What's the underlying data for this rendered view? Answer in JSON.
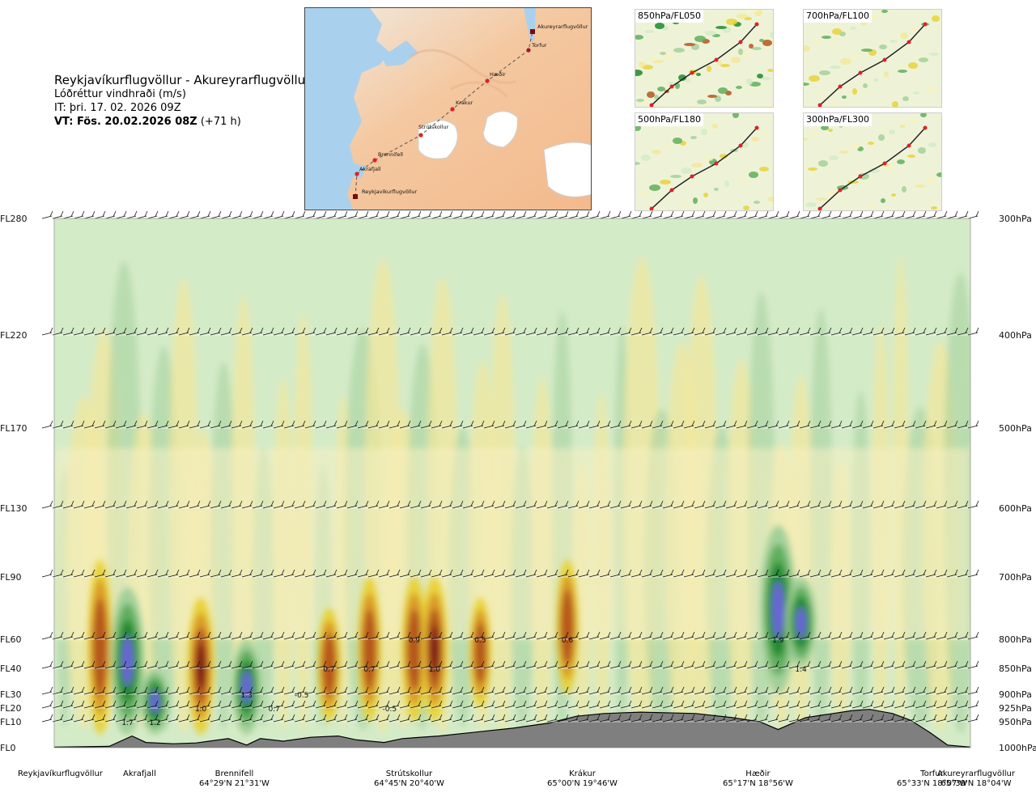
{
  "header": {
    "route": "Reykjavíkurflugvöllur - Akureyrarflugvöllur",
    "quantity": "Lóðréttur vindhraði (m/s)",
    "issue_time": "IT: þri. 17. 02. 2026 09Z",
    "valid_time_label": "VT: Fös. 20.02.2026 08Z",
    "lead_time": "(+71 h)"
  },
  "map": {
    "points": [
      {
        "name": "Akureyrarflugvöllur"
      },
      {
        "name": "Torfur"
      },
      {
        "name": "Hæðir"
      },
      {
        "name": "Krákur"
      },
      {
        "name": "Strútskollur"
      },
      {
        "name": "Brennifell"
      },
      {
        "name": "Akrafjall"
      },
      {
        "name": "Reykjavíkurflugvöllur"
      }
    ]
  },
  "panels": [
    {
      "label": "850hPa/FL050"
    },
    {
      "label": "700hPa/FL100"
    },
    {
      "label": "500hPa/FL180"
    },
    {
      "label": "300hPa/FL300"
    }
  ],
  "colors": {
    "strong_down": "#7b1e12",
    "down2": "#b5561a",
    "down3": "#d99a2a",
    "down4": "#e8d23a",
    "down5": "#f3e79a",
    "weak": "#f7f1c4",
    "up1": "#d4ebc8",
    "up2": "#a3d09a",
    "up3": "#5fae5d",
    "up4": "#1e8a2e",
    "strong_up": "#6a63d8",
    "terrain": "#7f7f7f"
  },
  "chart_data": {
    "type": "heatmap",
    "title": "Lóðréttur vindhraði (m/s)",
    "xlabel": "",
    "ylabel": "",
    "x_points": [
      {
        "name": "Reykjavíkurflugvöllur",
        "coord": ""
      },
      {
        "name": "Akrafjall",
        "coord": ""
      },
      {
        "name": "Brennifell",
        "coord": "64°29'N 21°31'W"
      },
      {
        "name": "Strútskollur",
        "coord": "64°45'N 20°40'W"
      },
      {
        "name": "Krákur",
        "coord": "65°00'N 19°46'W"
      },
      {
        "name": "Hæðir",
        "coord": "65°17'N 18°56'W"
      },
      {
        "name": "Torfur",
        "coord": "65°33'N 18°07'W"
      },
      {
        "name": "Akureyrarflugvöllur",
        "coord": "65°39'N 18°04'W"
      }
    ],
    "left_axis": [
      "FL280",
      "FL220",
      "FL170",
      "FL130",
      "FL90",
      "FL60",
      "FL40",
      "FL30",
      "FL20",
      "FL10",
      "FL0"
    ],
    "right_axis": [
      "300hPa",
      "400hPa",
      "500hPa",
      "600hPa",
      "700hPa",
      "800hPa",
      "850hPa",
      "900hPa",
      "925hPa",
      "950hPa",
      "1000hPa"
    ],
    "pressure_levels_hpa": [
      300,
      400,
      500,
      600,
      700,
      800,
      850,
      900,
      925,
      950,
      1000
    ],
    "annotations": [
      {
        "text": "1.7",
        "dist": 0.08,
        "fl": 10
      },
      {
        "text": "1.2",
        "dist": 0.11,
        "fl": 10
      },
      {
        "text": "1.0",
        "dist": 0.16,
        "fl": 20
      },
      {
        "text": "1.3",
        "dist": 0.21,
        "fl": 30
      },
      {
        "text": "0.7",
        "dist": 0.24,
        "fl": 20
      },
      {
        "text": "-0.5",
        "dist": 0.27,
        "fl": 30
      },
      {
        "text": "0.7",
        "dist": 0.3,
        "fl": 40
      },
      {
        "text": "-0.5",
        "dist": 0.366,
        "fl": 20
      },
      {
        "text": "0.7",
        "dist": 0.344,
        "fl": 40
      },
      {
        "text": "0.9",
        "dist": 0.393,
        "fl": 60
      },
      {
        "text": "1.0",
        "dist": 0.415,
        "fl": 40
      },
      {
        "text": "0.5",
        "dist": 0.465,
        "fl": 60
      },
      {
        "text": "0.6",
        "dist": 0.56,
        "fl": 60
      },
      {
        "text": "1.9",
        "dist": 0.79,
        "fl": 60
      },
      {
        "text": "1.4",
        "dist": 0.815,
        "fl": 40
      }
    ],
    "features": [
      {
        "dist": 0.05,
        "fl_low": 5,
        "fl_high": 100,
        "value": 0.8
      },
      {
        "dist": 0.08,
        "fl_low": 5,
        "fl_high": 85,
        "value": 1.7
      },
      {
        "dist": 0.11,
        "fl_low": 5,
        "fl_high": 40,
        "value": 1.2
      },
      {
        "dist": 0.16,
        "fl_low": 5,
        "fl_high": 80,
        "value": 1.0
      },
      {
        "dist": 0.21,
        "fl_low": 5,
        "fl_high": 60,
        "value": 1.3
      },
      {
        "dist": 0.3,
        "fl_low": 10,
        "fl_high": 75,
        "value": 0.7
      },
      {
        "dist": 0.344,
        "fl_low": 10,
        "fl_high": 90,
        "value": 0.7
      },
      {
        "dist": 0.393,
        "fl_low": 10,
        "fl_high": 90,
        "value": 0.9
      },
      {
        "dist": 0.415,
        "fl_low": 10,
        "fl_high": 90,
        "value": 1.0
      },
      {
        "dist": 0.465,
        "fl_low": 20,
        "fl_high": 80,
        "value": 0.5
      },
      {
        "dist": 0.56,
        "fl_low": 30,
        "fl_high": 100,
        "value": 0.6
      },
      {
        "dist": 0.79,
        "fl_low": 30,
        "fl_high": 120,
        "value": 1.9
      },
      {
        "dist": 0.815,
        "fl_low": 40,
        "fl_high": 90,
        "value": 1.4
      }
    ],
    "terrain_fl": [
      [
        0.0,
        0.2
      ],
      [
        0.06,
        0.5
      ],
      [
        0.085,
        4.5
      ],
      [
        0.1,
        2
      ],
      [
        0.13,
        1.5
      ],
      [
        0.155,
        1.8
      ],
      [
        0.19,
        3.5
      ],
      [
        0.21,
        1.0
      ],
      [
        0.225,
        3.5
      ],
      [
        0.25,
        2.5
      ],
      [
        0.28,
        4
      ],
      [
        0.31,
        4.5
      ],
      [
        0.33,
        3
      ],
      [
        0.36,
        2
      ],
      [
        0.38,
        3.5
      ],
      [
        0.42,
        4.5
      ],
      [
        0.46,
        6
      ],
      [
        0.5,
        7.5
      ],
      [
        0.54,
        9.5
      ],
      [
        0.57,
        14
      ],
      [
        0.6,
        16
      ],
      [
        0.64,
        17
      ],
      [
        0.7,
        16
      ],
      [
        0.74,
        13
      ],
      [
        0.77,
        10
      ],
      [
        0.79,
        7
      ],
      [
        0.82,
        13
      ],
      [
        0.85,
        16
      ],
      [
        0.87,
        18
      ],
      [
        0.89,
        19
      ],
      [
        0.915,
        16
      ],
      [
        0.935,
        11
      ],
      [
        0.955,
        6
      ],
      [
        0.975,
        1.0
      ],
      [
        1.0,
        0.2
      ]
    ]
  }
}
